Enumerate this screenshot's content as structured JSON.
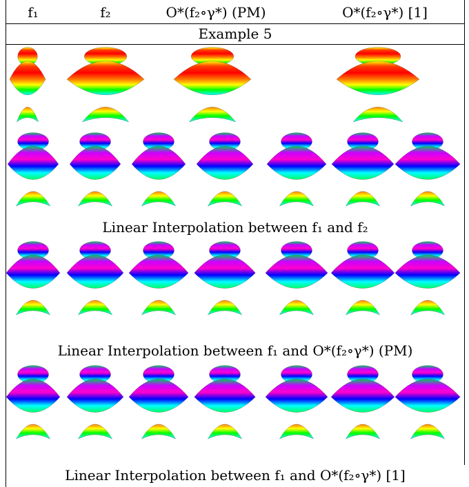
{
  "header": {
    "col1": "f₁",
    "col2": "f₂",
    "col3": "O*(f₂∘γ*) (PM)",
    "col4": "O*(f₂∘γ*) [1]"
  },
  "example_label": "Example 5",
  "captions": {
    "row2": "Linear Interpolation between f₁ and f₂",
    "row3": "Linear Interpolation between f₁ and O*(f₂∘γ*) (PM)",
    "row4": "Linear Interpolation between f₁ and O*(f₂∘γ*) [1]"
  },
  "colors": {
    "rainbow": [
      "#ff0000",
      "#ff8000",
      "#ffff00",
      "#00ff00",
      "#00ffff",
      "#0000ff",
      "#ff00ff"
    ]
  }
}
